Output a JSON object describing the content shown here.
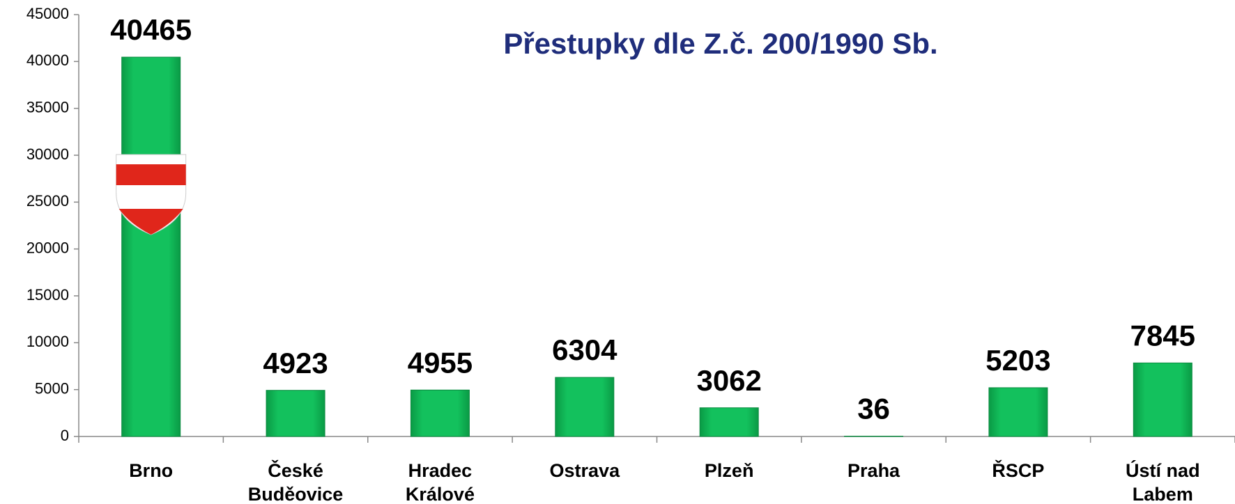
{
  "chart_data": {
    "type": "bar",
    "title": "Přestupky dle Z.č. 200/1990 Sb.",
    "categories": [
      "Brno",
      "České Buděovice",
      "Hradec Králové",
      "Ostrava",
      "Plzeň",
      "Praha",
      "ŘSCP",
      "Ústí nad Labem"
    ],
    "values": [
      40465,
      4923,
      4955,
      6304,
      3062,
      36,
      5203,
      7845
    ],
    "color": "#10b954",
    "ylim": [
      0,
      45000
    ],
    "yticks": [
      0,
      5000,
      10000,
      15000,
      20000,
      25000,
      30000,
      35000,
      40000,
      45000
    ],
    "grid": false
  }
}
